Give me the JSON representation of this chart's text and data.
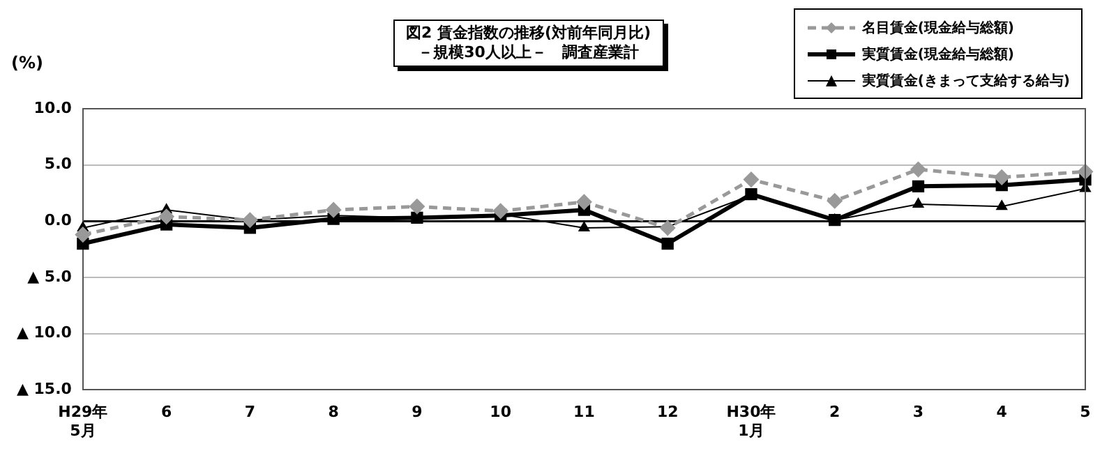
{
  "chart_data": {
    "type": "line",
    "title": "図2 賃金指数の推移(対前年同月比)\n－規模30人以上－　調査産業計",
    "ylabel": "(%)",
    "categories": [
      "H29年\n5月",
      "6",
      "7",
      "8",
      "9",
      "10",
      "11",
      "12",
      "H30年\n1月",
      "2",
      "3",
      "4",
      "5"
    ],
    "series": [
      {
        "name": "名目賃金(現金給与総額)",
        "color": "#999999",
        "marker": "diamond",
        "line_style": "dashed",
        "values": [
          -1.2,
          0.4,
          0.1,
          1.0,
          1.3,
          0.9,
          1.7,
          -0.6,
          3.7,
          1.8,
          4.6,
          3.9,
          4.4
        ]
      },
      {
        "name": "実質賃金(現金給与総額)",
        "color": "#000000",
        "marker": "square",
        "line_style": "solid",
        "values": [
          -2.0,
          -0.3,
          -0.6,
          0.2,
          0.3,
          0.5,
          1.0,
          -2.0,
          2.4,
          0.1,
          3.1,
          3.2,
          3.7
        ]
      },
      {
        "name": "実質賃金(きまって支給する給与)",
        "color": "#000000",
        "marker": "triangle",
        "line_style": "solid",
        "values": [
          -0.6,
          1.0,
          0.1,
          0.5,
          0.3,
          0.6,
          -0.6,
          -0.5,
          2.3,
          0.1,
          1.5,
          1.3,
          2.9
        ]
      }
    ],
    "ylim": [
      -15,
      10
    ],
    "yticks": [
      {
        "value": 10,
        "label": "10.0"
      },
      {
        "value": 5,
        "label": "5.0"
      },
      {
        "value": 0,
        "label": "0.0"
      },
      {
        "value": -5,
        "label": "▲ 5.0"
      },
      {
        "value": -10,
        "label": "▲ 10.0"
      },
      {
        "value": -15,
        "label": "▲ 15.0"
      }
    ],
    "grid": "y",
    "legend": "top right"
  }
}
